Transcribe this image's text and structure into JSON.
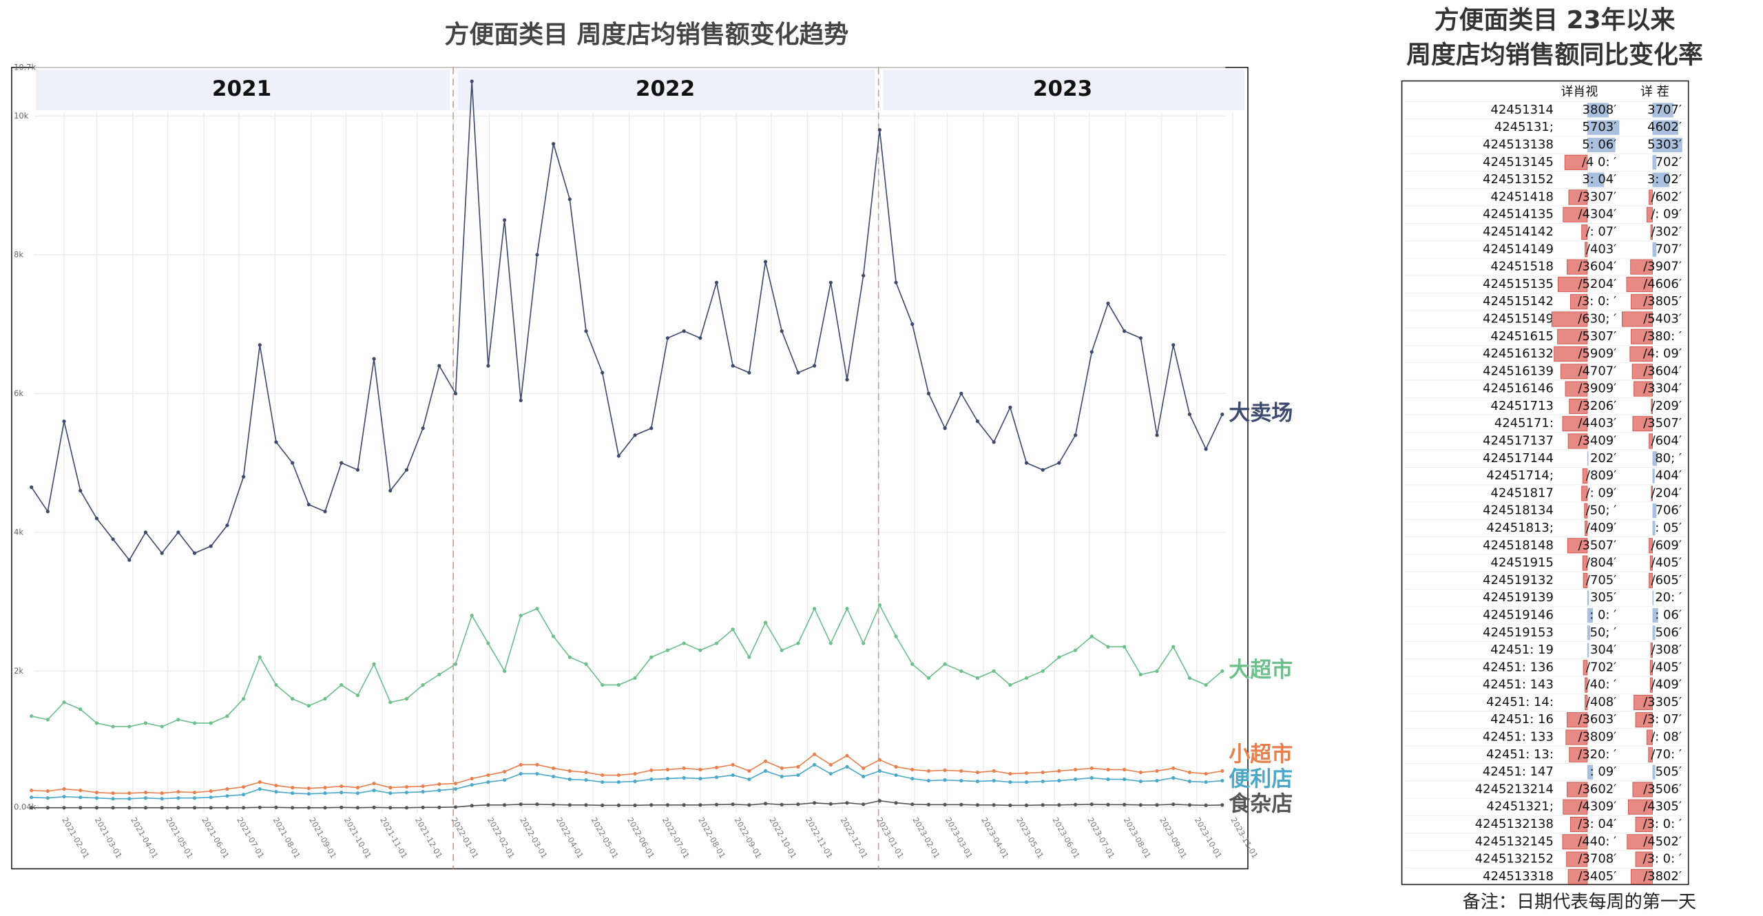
{
  "chart_data": {
    "type": "line",
    "title": "方便面类目 周度店均销售额变化趋势",
    "x": [
      "2021-01-04",
      "2021-01-18",
      "2021-02-01",
      "2021-02-15",
      "2021-03-01",
      "2021-03-15",
      "2021-03-29",
      "2021-04-12",
      "2021-04-26",
      "2021-05-10",
      "2021-05-24",
      "2021-06-07",
      "2021-06-21",
      "2021-07-05",
      "2021-07-19",
      "2021-08-02",
      "2021-08-16",
      "2021-08-30",
      "2021-09-13",
      "2021-09-27",
      "2021-10-11",
      "2021-10-25",
      "2021-11-08",
      "2021-11-22",
      "2021-12-06",
      "2021-12-20",
      "2022-01-03",
      "2022-01-17",
      "2022-01-31",
      "2022-02-14",
      "2022-02-28",
      "2022-03-14",
      "2022-03-28",
      "2022-04-11",
      "2022-04-25",
      "2022-05-09",
      "2022-05-23",
      "2022-06-06",
      "2022-06-20",
      "2022-07-04",
      "2022-07-18",
      "2022-08-01",
      "2022-08-15",
      "2022-08-29",
      "2022-09-12",
      "2022-09-26",
      "2022-10-10",
      "2022-10-24",
      "2022-11-07",
      "2022-11-21",
      "2022-12-05",
      "2022-12-19",
      "2023-01-02",
      "2023-01-16",
      "2023-01-30",
      "2023-02-13",
      "2023-02-27",
      "2023-03-13",
      "2023-03-27",
      "2023-04-10",
      "2023-04-24",
      "2023-05-08",
      "2023-05-22",
      "2023-06-05",
      "2023-06-19",
      "2023-07-03",
      "2023-07-17",
      "2023-07-31",
      "2023-08-14",
      "2023-08-28",
      "2023-09-11",
      "2023-09-25",
      "2023-10-09",
      "2023-10-23"
    ],
    "series": [
      {
        "name": "大卖场",
        "color": "#3d4a6e",
        "values": [
          4650,
          4300,
          5600,
          4600,
          4200,
          3900,
          3600,
          4000,
          3700,
          4000,
          3700,
          3800,
          4100,
          4800,
          6700,
          5300,
          5000,
          4400,
          4300,
          5000,
          4900,
          6500,
          4600,
          4900,
          5500,
          6400,
          6000,
          10500,
          6400,
          8500,
          5900,
          8000,
          9600,
          8800,
          6900,
          6300,
          5100,
          5400,
          5500,
          6800,
          6900,
          6800,
          7600,
          6400,
          6300,
          7900,
          6900,
          6300,
          6400,
          7600,
          6200,
          7700,
          9800,
          7600,
          7000,
          6000,
          5500,
          6000,
          5600,
          5300,
          5800,
          5000,
          4900,
          5000,
          5400,
          6600,
          7300,
          6900,
          6800,
          5400,
          6700,
          5700,
          5200,
          5700
        ]
      },
      {
        "name": "大超市",
        "color": "#6dbf8b",
        "values": [
          1350,
          1300,
          1550,
          1450,
          1250,
          1200,
          1200,
          1250,
          1200,
          1300,
          1250,
          1250,
          1350,
          1600,
          2200,
          1800,
          1600,
          1500,
          1600,
          1800,
          1650,
          2100,
          1550,
          1600,
          1800,
          1950,
          2100,
          2800,
          2400,
          2000,
          2800,
          2900,
          2500,
          2200,
          2100,
          1800,
          1800,
          1900,
          2200,
          2300,
          2400,
          2300,
          2400,
          2600,
          2200,
          2700,
          2300,
          2400,
          2900,
          2400,
          2900,
          2400,
          2950,
          2500,
          2100,
          1900,
          2100,
          2000,
          1900,
          2000,
          1800,
          1900,
          2000,
          2200,
          2300,
          2500,
          2350,
          2350,
          1950,
          2000,
          2350,
          1900,
          1800,
          2000
        ]
      },
      {
        "name": "小超市",
        "color": "#e8804e",
        "values": [
          280,
          270,
          300,
          280,
          250,
          240,
          240,
          250,
          240,
          260,
          250,
          270,
          300,
          330,
          400,
          350,
          320,
          310,
          320,
          340,
          320,
          380,
          320,
          330,
          340,
          370,
          380,
          450,
          500,
          550,
          650,
          650,
          600,
          560,
          540,
          500,
          500,
          520,
          570,
          580,
          600,
          580,
          610,
          650,
          560,
          700,
          600,
          620,
          800,
          650,
          780,
          600,
          720,
          620,
          580,
          560,
          570,
          560,
          540,
          560,
          520,
          530,
          540,
          560,
          580,
          600,
          580,
          580,
          540,
          560,
          600,
          540,
          520,
          560
        ]
      },
      {
        "name": "便利店",
        "color": "#4ba8c8",
        "values": [
          180,
          170,
          190,
          180,
          170,
          160,
          160,
          170,
          160,
          170,
          170,
          180,
          200,
          220,
          300,
          260,
          240,
          230,
          240,
          250,
          240,
          280,
          240,
          250,
          260,
          280,
          300,
          360,
          400,
          430,
          520,
          520,
          480,
          440,
          430,
          400,
          400,
          410,
          440,
          450,
          460,
          450,
          470,
          500,
          440,
          560,
          480,
          500,
          650,
          520,
          620,
          480,
          560,
          500,
          450,
          420,
          430,
          420,
          410,
          420,
          400,
          400,
          410,
          420,
          440,
          460,
          440,
          440,
          410,
          420,
          460,
          410,
          400,
          420
        ]
      },
      {
        "name": "食杂店",
        "color": "#555555",
        "values": [
          30,
          30,
          30,
          30,
          30,
          30,
          30,
          30,
          30,
          30,
          30,
          30,
          30,
          30,
          35,
          35,
          30,
          30,
          30,
          35,
          30,
          35,
          30,
          30,
          35,
          35,
          40,
          60,
          70,
          70,
          80,
          80,
          75,
          70,
          70,
          65,
          65,
          65,
          70,
          70,
          70,
          70,
          75,
          80,
          70,
          90,
          75,
          80,
          100,
          85,
          100,
          80,
          130,
          100,
          80,
          75,
          75,
          75,
          70,
          70,
          65,
          65,
          70,
          70,
          75,
          80,
          75,
          75,
          70,
          70,
          80,
          70,
          65,
          70
        ]
      }
    ],
    "xlim": [
      "2020-12-18",
      "2023-11-14"
    ],
    "xticks": [
      "2021-02-01",
      "2021-03-01",
      "2021-04-01",
      "2021-05-01",
      "2021-06-01",
      "2021-07-01",
      "2021-08-01",
      "2021-09-01",
      "2021-10-01",
      "2021-11-01",
      "2021-12-01",
      "2022-01-01",
      "2022-02-01",
      "2022-03-01",
      "2022-04-01",
      "2022-05-01",
      "2022-06-01",
      "2022-07-01",
      "2022-08-01",
      "2022-09-01",
      "2022-10-01",
      "2022-11-01",
      "2022-12-01",
      "2023-01-01",
      "2023-02-01",
      "2023-03-01",
      "2023-04-01",
      "2023-05-01",
      "2023-06-01",
      "2023-07-01",
      "2023-08-01",
      "2023-09-01",
      "2023-10-01",
      "2023-11-01"
    ],
    "ylim": [
      -850,
      10700
    ],
    "yticks": [
      {
        "value": 40,
        "label": "0.04k"
      },
      {
        "value": 2000,
        "label": "2k"
      },
      {
        "value": 4000,
        "label": "4k"
      },
      {
        "value": 6000,
        "label": "6k"
      },
      {
        "value": 8000,
        "label": "8k"
      },
      {
        "value": 10000,
        "label": "10k"
      },
      {
        "value": 10700,
        "label": "10.7k"
      }
    ],
    "grid": true,
    "year_bands": [
      {
        "label": "2021",
        "start": "2021-01-04",
        "end": "2021-12-31"
      },
      {
        "label": "2022",
        "start": "2022-01-01",
        "end": "2022-12-31"
      },
      {
        "label": "2023",
        "start": "2023-01-01",
        "end": "2023-11-14"
      }
    ]
  },
  "panel": {
    "title": [
      "方便面类目 23年以来",
      "周度店均销售额同比变化率"
    ],
    "table": {
      "header": [
        "详肖视",
        "详 茬"
      ],
      "positive_color": "#a9c0de",
      "negative_color": "#e88a84",
      "rows": [
        [
          "42451314",
          "3808′",
          38,
          "3707′",
          37
        ],
        [
          "4245131;",
          "5703′",
          57,
          "4602′",
          46
        ],
        [
          "424513138",
          "5: 06′",
          50,
          "5303′",
          53
        ],
        [
          "424513145",
          "/4 0: ′",
          -40,
          "702′",
          7
        ],
        [
          "424513152",
          "3: 04′",
          30,
          "3: 02′",
          30
        ],
        [
          "42451418",
          "/3307′",
          -33,
          "/602′",
          -6
        ],
        [
          "424514135",
          "/4304′",
          -43,
          "/: 09′",
          -10
        ],
        [
          "424514142",
          "/: 07′",
          -10,
          "/302′",
          -3
        ],
        [
          "424514149",
          "/403′",
          -4,
          "707′",
          7
        ],
        [
          "42451518",
          "/3604′",
          -36,
          "/3907′",
          -39
        ],
        [
          "424515135",
          "/5204′",
          -52,
          "/4606′",
          -46
        ],
        [
          "424515142",
          "/3: 0: ′",
          -30,
          "/3805′",
          -38
        ],
        [
          "424515149",
          "/630; ′",
          -63,
          "/5403′",
          -54
        ],
        [
          "42451615",
          "/5307′",
          -53,
          "/380: ′",
          -38
        ],
        [
          "424516132",
          "/5909′",
          -59,
          "/4: 09′",
          -40
        ],
        [
          "424516139",
          "/4707′",
          -47,
          "/3604′",
          -36
        ],
        [
          "424516146",
          "/3909′",
          -39,
          "/3304′",
          -33
        ],
        [
          "42451713",
          "/3206′",
          -32,
          "/209′",
          -2
        ],
        [
          "4245171:",
          "/4403′",
          -44,
          "/3507′",
          -35
        ],
        [
          "424517137",
          "/3409′",
          -34,
          "/604′",
          -6
        ],
        [
          "424517144",
          "202′",
          2,
          "80; ′",
          8
        ],
        [
          "42451714;",
          "/809′",
          -8,
          "404′",
          4
        ],
        [
          "42451817",
          "/: 09′",
          -10,
          "/204′",
          -2
        ],
        [
          "424518134",
          "/50; ′",
          -5,
          "706′",
          7
        ],
        [
          "42451813;",
          "/409′",
          -4,
          ": 05′",
          5
        ],
        [
          "424518148",
          "/3507′",
          -35,
          "/609′",
          -6
        ],
        [
          "42451915",
          "/804′",
          -8,
          "/405′",
          -4
        ],
        [
          "424519132",
          "/705′",
          -7,
          "/605′",
          -6
        ],
        [
          "424519139",
          "305′",
          3,
          "20: ′",
          2
        ],
        [
          "424519146",
          ": 0: ′",
          10,
          ": 06′",
          10
        ],
        [
          "424519153",
          "50; ′",
          5,
          "506′",
          5
        ],
        [
          "42451: 19",
          "304′",
          3,
          "/308′",
          -3
        ],
        [
          "42451: 136",
          "/702′",
          -7,
          "/405′",
          -4
        ],
        [
          "42451: 143",
          "/40: ′",
          -4,
          "/409′",
          -4
        ],
        [
          "42451: 14:",
          "/408′",
          -4,
          "/3305′",
          -33
        ],
        [
          "42451: 16",
          "/3603′",
          -36,
          "/3: 07′",
          -30
        ],
        [
          "42451: 133",
          "/3809′",
          -38,
          "/: 08′",
          -10
        ],
        [
          "42451: 13:",
          "/320: ′",
          -32,
          "/70: ′",
          -7
        ],
        [
          "42451: 147",
          ": 09′",
          10,
          "505′",
          5
        ],
        [
          "4245213214",
          "/3602′",
          -36,
          "/3506′",
          -35
        ],
        [
          "42451321;",
          "/4309′",
          -43,
          "/4305′",
          -43
        ],
        [
          "4245132138",
          "/3: 04′",
          -30,
          "/3: 0: ′",
          -30
        ],
        [
          "4245132145",
          "/440: ′",
          -44,
          "/4502′",
          -45
        ],
        [
          "4245132152",
          "/3708′",
          -37,
          "/3: 0: ′",
          -30
        ],
        [
          "424513318",
          "/3405′",
          -34,
          "/3802′",
          -38
        ]
      ]
    },
    "note": "备注：日期代表每周的第一天"
  }
}
